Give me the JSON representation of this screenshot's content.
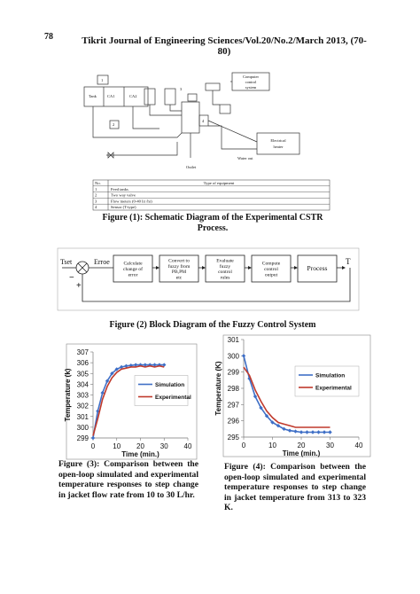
{
  "page_number": "78",
  "header": "Tikrit Journal of Engineering Sciences/Vol.20/No.2/March 2013, (70-80)",
  "figure1": {
    "labels": {
      "tank": "Tank",
      "ca1": "CA1",
      "ca2": "CA2",
      "computer": [
        "Computer",
        "control",
        "system"
      ],
      "heater": [
        "Electrical",
        "heater"
      ],
      "outlet": "Outlet",
      "water_out": "Water out",
      "n1": "1",
      "n2": "2",
      "n3": "3",
      "n4": "4"
    },
    "table": {
      "header": [
        "No.",
        "Type of equipment"
      ],
      "rows": [
        [
          "1",
          "Feed tanks"
        ],
        [
          "2",
          "Two way valve"
        ],
        [
          "3",
          "Flow meters (0-40 lit /hr)"
        ],
        [
          "4",
          "Sensor (T-type)"
        ]
      ]
    },
    "caption": [
      "Figure (1): Schematic Diagram of the Experimental CSTR",
      "Process."
    ]
  },
  "figure2": {
    "tset": "Tset",
    "error": "Erroe",
    "minus": "−",
    "plus": "+",
    "output": "T",
    "blocks": [
      [
        "Calculate",
        "change of",
        "error"
      ],
      [
        "Convert to",
        "fuzzy from",
        "PB,PM",
        "etc"
      ],
      [
        "Evaluate",
        "fuzzy",
        "control",
        "rules"
      ],
      [
        "Compute",
        "control",
        "output"
      ],
      [
        "Process"
      ]
    ],
    "caption": "Figure (2) Block Diagram of the Fuzzy Control System"
  },
  "chart_data": [
    {
      "type": "line",
      "xlabel": "Time (min.)",
      "ylabel": "Temperature (k)",
      "x": [
        0,
        2,
        4,
        6,
        8,
        10,
        12,
        14,
        16,
        18,
        20,
        22,
        24,
        26,
        28,
        30
      ],
      "series": [
        {
          "name": "Simulation",
          "color": "#3f6fc6",
          "marker": "diamond",
          "values": [
            299,
            301.5,
            303.2,
            304.3,
            305.0,
            305.4,
            305.6,
            305.7,
            305.75,
            305.8,
            305.8,
            305.8,
            305.8,
            305.8,
            305.8,
            305.8
          ]
        },
        {
          "name": "Experimental",
          "color": "#c0392b",
          "values": [
            299.2,
            300.8,
            302.6,
            303.8,
            304.6,
            305.1,
            305.4,
            305.5,
            305.6,
            305.6,
            305.7,
            305.6,
            305.7,
            305.6,
            305.7,
            305.6
          ]
        }
      ],
      "xlim": [
        0,
        40
      ],
      "xticks": [
        0,
        10,
        20,
        30,
        40
      ],
      "ylim": [
        299,
        307
      ],
      "yticks": [
        299,
        300,
        301,
        302,
        303,
        304,
        305,
        306,
        307
      ],
      "legend": "center right"
    },
    {
      "type": "line",
      "xlabel": "Time (min.)",
      "ylabel": "Temperature (K)",
      "x": [
        0,
        2,
        4,
        6,
        8,
        10,
        12,
        14,
        16,
        18,
        20,
        22,
        24,
        26,
        28,
        30
      ],
      "series": [
        {
          "name": "Simulation",
          "color": "#3f6fc6",
          "marker": "diamond",
          "values": [
            300,
            298.6,
            297.5,
            296.8,
            296.3,
            295.9,
            295.7,
            295.5,
            295.4,
            295.35,
            295.3,
            295.3,
            295.3,
            295.3,
            295.3,
            295.3
          ]
        },
        {
          "name": "Experimental",
          "color": "#c0392b",
          "values": [
            299.3,
            298.8,
            297.9,
            297.2,
            296.6,
            296.2,
            295.9,
            295.8,
            295.7,
            295.6,
            295.6,
            295.6,
            295.6,
            295.6,
            295.6,
            295.6
          ]
        }
      ],
      "xlim": [
        0,
        40
      ],
      "xticks": [
        0,
        10,
        20,
        30,
        40
      ],
      "ylim": [
        295,
        301
      ],
      "yticks": [
        295,
        296,
        297,
        298,
        299,
        300,
        301
      ],
      "legend": "upper right"
    }
  ],
  "captions": {
    "figure3": "Figure (3): Comparison between the open-loop simulated and experimental temperature responses to step change in jacket flow rate from 10 to 30 L/hr.",
    "figure4": "Figure (4): Comparison between the open-loop simulated and experimental temperature responses to step change in jacket temperature from 313 to 323 K."
  }
}
